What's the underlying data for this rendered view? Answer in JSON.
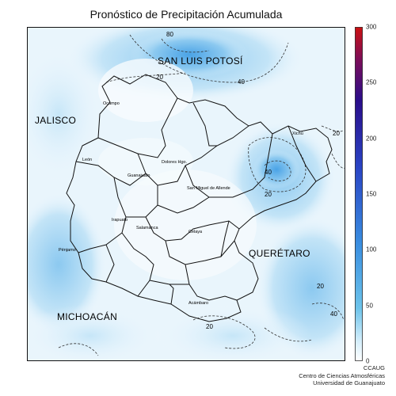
{
  "title": "Pronóstico de Precipitación Acumulada",
  "colorbar": {
    "ticks": [
      "300",
      "250",
      "200",
      "150",
      "100",
      "50",
      "0"
    ],
    "colors": [
      "#ffffff",
      "#bfe5f7",
      "#5bbde8",
      "#2b7fd8",
      "#2233b8",
      "#2a0d8a",
      "#cc1111"
    ]
  },
  "states": [
    "SAN LUIS POTOSÍ",
    "JALISCO",
    "QUERÉTARO",
    "MICHOACÁN"
  ],
  "cities": [
    "Ocampo",
    "León",
    "Guanajuato",
    "Dolores Hgo.",
    "San Miguel de Allende",
    "Xichú",
    "Irapuato",
    "Pénjamo",
    "Salamanca",
    "Celaya",
    "Acámbaro"
  ],
  "contour_labels": [
    "80",
    "20",
    "40",
    "20",
    "40",
    "20",
    "20",
    "40",
    "20"
  ],
  "credits": [
    "CCAUG",
    "Centro de Ciencias Atmosféricas",
    "Universidad de Guanajuato"
  ]
}
